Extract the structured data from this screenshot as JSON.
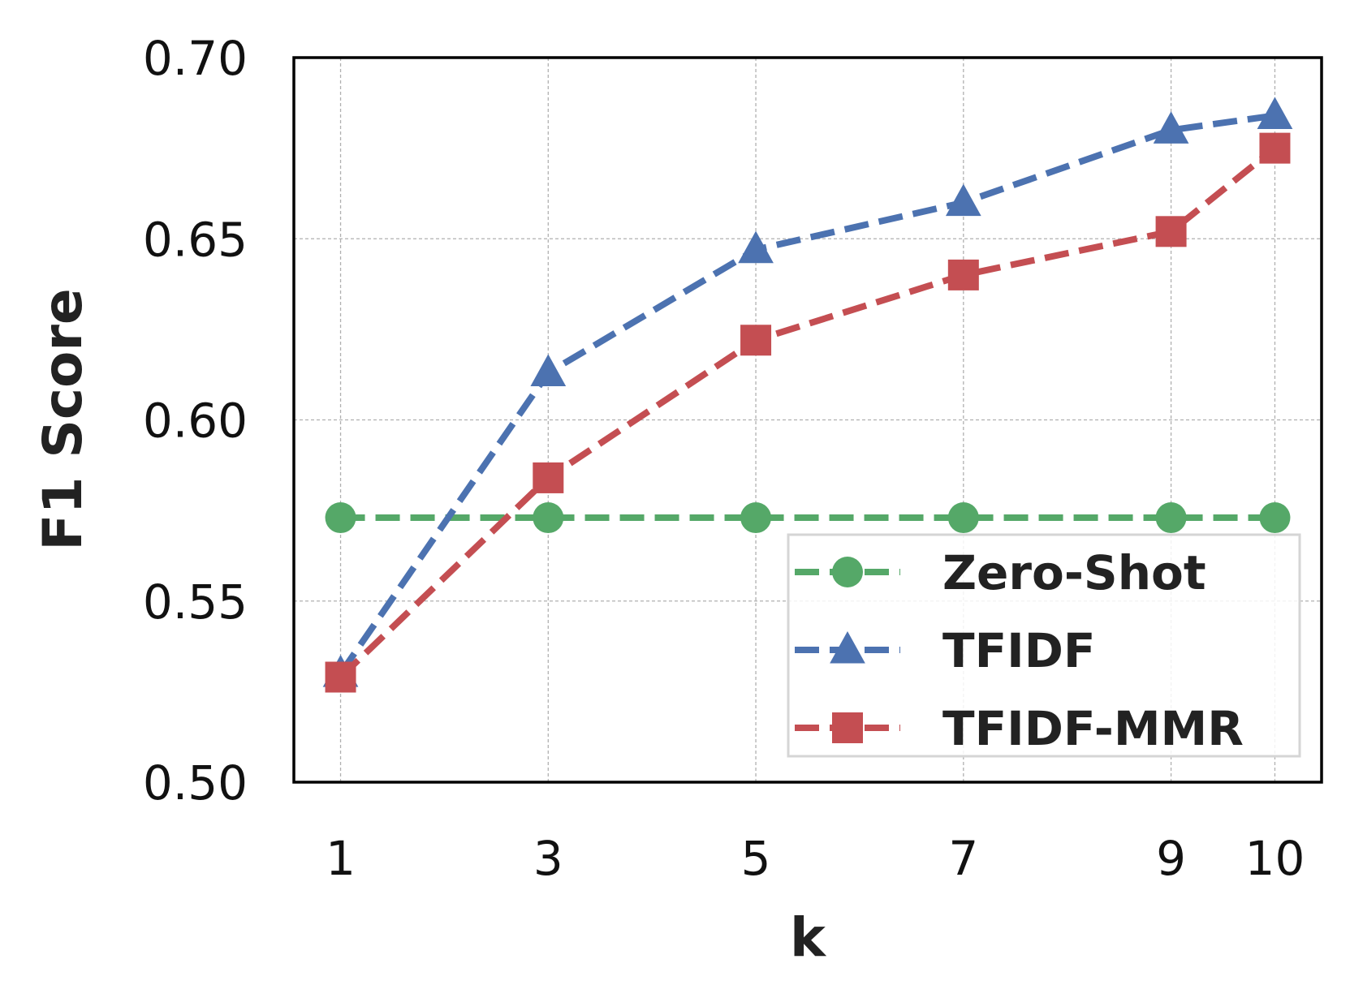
{
  "chart_data": {
    "type": "line",
    "xlabel": "k",
    "ylabel": "F1 Score",
    "x": [
      1,
      3,
      5,
      7,
      9,
      10
    ],
    "x_ticks": [
      "1",
      "3",
      "5",
      "7",
      "9",
      "10"
    ],
    "xlim": [
      0.55,
      10.45
    ],
    "ylim": [
      0.5,
      0.7
    ],
    "y_ticks": [
      "0.50",
      "0.55",
      "0.60",
      "0.65",
      "0.70"
    ],
    "y_tick_values": [
      0.5,
      0.55,
      0.6,
      0.65,
      0.7
    ],
    "grid": true,
    "legend_position": "bottom-right",
    "series": [
      {
        "name": "Zero-Shot",
        "values": [
          0.573,
          0.573,
          0.573,
          0.573,
          0.573,
          0.573
        ],
        "color": "#55a868",
        "marker": "circle"
      },
      {
        "name": "TFIDF",
        "values": [
          0.53,
          0.613,
          0.647,
          0.66,
          0.68,
          0.684
        ],
        "color": "#4c72b0",
        "marker": "triangle"
      },
      {
        "name": "TFIDF-MMR",
        "values": [
          0.529,
          0.584,
          0.622,
          0.64,
          0.652,
          0.675
        ],
        "color": "#c44e52",
        "marker": "square"
      }
    ]
  }
}
